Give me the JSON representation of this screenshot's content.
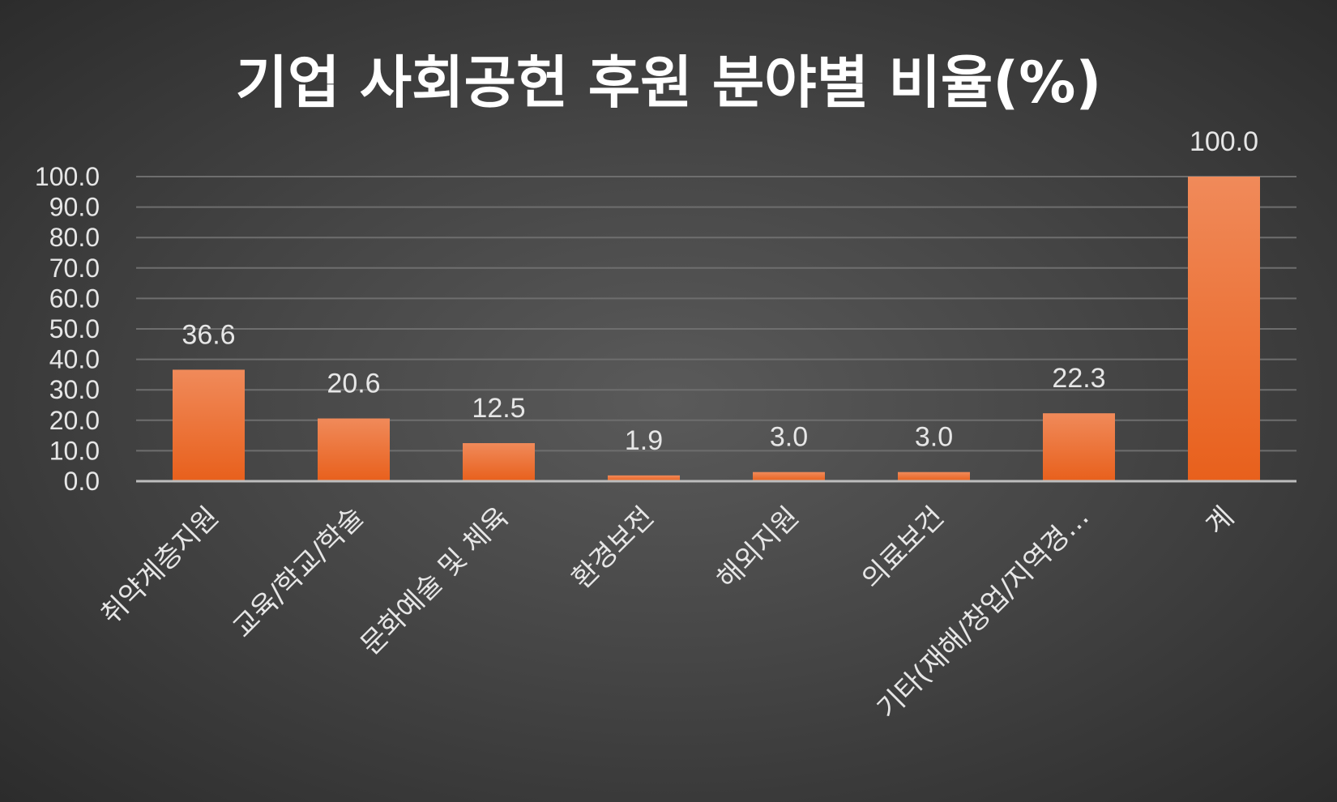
{
  "chart_data": {
    "type": "bar",
    "title": "기업 사회공헌 후원 분야별 비율(%)",
    "categories": [
      "취약계층지원",
      "교육/학교/학술",
      "문화예술 및 체육",
      "환경보전",
      "해외지원",
      "의료보건",
      "기타(재해/창업/지역경…",
      "계"
    ],
    "values": [
      36.6,
      20.6,
      12.5,
      1.9,
      3.0,
      3.0,
      22.3,
      100.0
    ],
    "data_labels": [
      "36.6",
      "20.6",
      "12.5",
      "1.9",
      "3.0",
      "3.0",
      "22.3",
      "100.0"
    ],
    "y_ticks": [
      "0.0",
      "10.0",
      "20.0",
      "30.0",
      "40.0",
      "50.0",
      "60.0",
      "70.0",
      "80.0",
      "90.0",
      "100.0"
    ],
    "ylim": [
      0,
      100
    ],
    "xlabel": "",
    "ylabel": "",
    "grid": true,
    "legend": "none",
    "colors": {
      "bar_top": "#f08a5a",
      "bar_bottom": "#e8601c",
      "background_center": "#5a5a5a",
      "background_edge": "#2c2c2c",
      "text": "#e6e6e6",
      "title": "#ffffff"
    }
  }
}
